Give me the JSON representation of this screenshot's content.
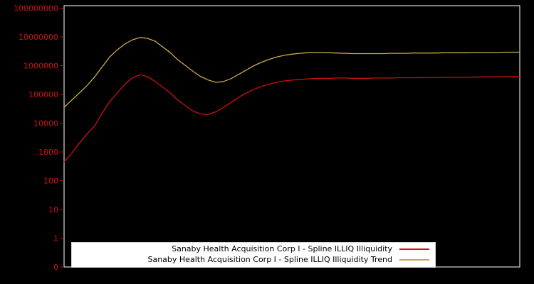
{
  "colors": {
    "background": "#000000",
    "spine": "#ffffff",
    "tick_label": "#cc1111",
    "series_illiquidity": "#cc1111",
    "series_trend": "#c9ab47",
    "legend_bg": "#ffffff",
    "legend_text": "#000000"
  },
  "y_axis": {
    "tick_labels": [
      "0",
      "1",
      "10",
      "100",
      "1000",
      "10000",
      "100000",
      "1000000",
      "10000000",
      "100000000"
    ]
  },
  "legend": {
    "items": [
      {
        "label": "Sanaby Health Acquisition Corp I - Spline ILLIQ Illiquidity",
        "color": "#cc1111"
      },
      {
        "label": "Sanaby Health Acquisition Corp I - Spline ILLIQ Illiquidity Trend",
        "color": "#c9ab47"
      }
    ]
  },
  "chart_data": {
    "type": "line",
    "title": "",
    "xlabel": "",
    "ylabel": "",
    "yscale": "symlog",
    "ylim": [
      0,
      100000000
    ],
    "grid": false,
    "legend_position": "lower center",
    "x": [
      0,
      1,
      2,
      3,
      4,
      5,
      6,
      7,
      8,
      9,
      10,
      11,
      12,
      13,
      14,
      15,
      16,
      17,
      18,
      19,
      20,
      21,
      22,
      23,
      24,
      25,
      26,
      27,
      28,
      29,
      30,
      31,
      32,
      33,
      34,
      35,
      36,
      37,
      38,
      39,
      40,
      41,
      42,
      43,
      44,
      45,
      46,
      47,
      48,
      49,
      50,
      51,
      52,
      53,
      54,
      55,
      56,
      57,
      58,
      59,
      60
    ],
    "series": [
      {
        "name": "Sanaby Health Acquisition Corp I - Spline ILLIQ Illiquidity",
        "color": "#cc1111",
        "values": [
          450,
          900,
          2000,
          4200,
          7900,
          22000,
          56000,
          112000,
          224000,
          380000,
          480000,
          420000,
          280000,
          178000,
          112000,
          63000,
          40000,
          26000,
          21000,
          20000,
          25000,
          35500,
          52500,
          79000,
          112000,
          151000,
          190000,
          229000,
          263000,
          295000,
          316000,
          331000,
          347000,
          355000,
          363000,
          363000,
          372000,
          372000,
          363000,
          363000,
          363000,
          372000,
          372000,
          372000,
          380000,
          380000,
          380000,
          380000,
          389000,
          389000,
          389000,
          398000,
          398000,
          398000,
          398000,
          407000,
          407000,
          407000,
          417000,
          417000,
          417000
        ]
      },
      {
        "name": "Sanaby Health Acquisition Corp I - Spline ILLIQ Illiquidity Trend",
        "color": "#c9ab47",
        "values": [
          35500,
          63000,
          112000,
          200000,
          398000,
          891000,
          2000000,
          3550000,
          5620000,
          7940000,
          9550000,
          8910000,
          7080000,
          4470000,
          2820000,
          1580000,
          1000000,
          631000,
          417000,
          316000,
          263000,
          282000,
          355000,
          501000,
          708000,
          1000000,
          1320000,
          1660000,
          2000000,
          2290000,
          2510000,
          2690000,
          2820000,
          2880000,
          2880000,
          2820000,
          2750000,
          2690000,
          2630000,
          2630000,
          2630000,
          2630000,
          2630000,
          2690000,
          2690000,
          2690000,
          2750000,
          2750000,
          2750000,
          2750000,
          2820000,
          2820000,
          2820000,
          2820000,
          2880000,
          2880000,
          2880000,
          2880000,
          2950000,
          2950000,
          2950000
        ]
      }
    ]
  }
}
